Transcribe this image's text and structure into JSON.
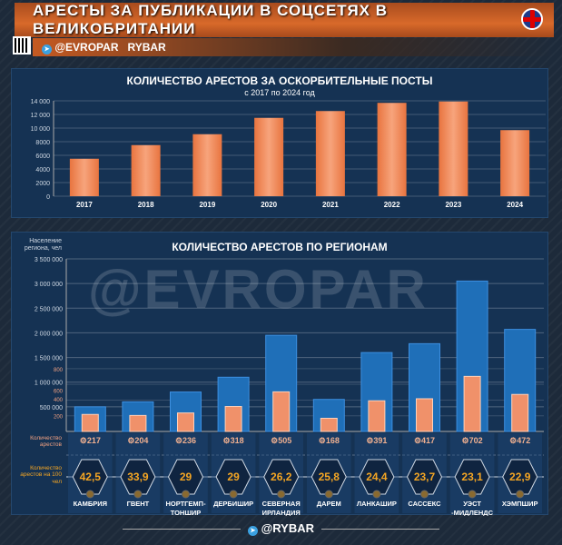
{
  "header": {
    "title": "АРЕСТЫ ЗА ПУБЛИКАЦИИ В СОЦСЕТЯХ В ВЕЛИКОБРИТАНИИ",
    "channel": "@EVROPAR",
    "brand": "RYBAR",
    "footer": "@RYBAR",
    "watermark": "@EVROPAR"
  },
  "colors": {
    "arrests_bar": "#f0916a",
    "population_bar": "#1f6fb8",
    "accent": "#f5a623"
  },
  "chart_data": [
    {
      "type": "bar",
      "title": "КОЛИЧЕСТВО АРЕСТОВ ЗА ОСКОРБИТЕЛЬНЫЕ ПОСТЫ",
      "subtitle": "с 2017 по 2024 год",
      "categories": [
        "2017",
        "2018",
        "2019",
        "2020",
        "2021",
        "2022",
        "2023",
        "2024"
      ],
      "values": [
        5500,
        7500,
        9100,
        11500,
        12500,
        13700,
        13900,
        9700
      ],
      "ylim": [
        0,
        14000
      ],
      "yticks": [
        "0",
        "2000",
        "4000",
        "6000",
        "8000",
        "10 000",
        "12 000",
        "14 000"
      ],
      "grid": true
    },
    {
      "type": "bar",
      "title": "КОЛИЧЕСТВО АРЕСТОВ ПО РЕГИОНАМ",
      "ylabel": "Население региона, чел",
      "yticks": [
        "3 500 000",
        "3 000 000",
        "2 500 000",
        "2 000 000",
        "1 500 000",
        "1 000 000",
        "500 000"
      ],
      "yticks_arrests": [
        "800",
        "600",
        "400",
        "200"
      ],
      "ylim": [
        0,
        3500000
      ],
      "ylim_arrests": [
        0,
        2200
      ],
      "row_label_arrests": "Количество арестов",
      "row_label_rate": "Количество арестов на 100 чел",
      "categories": [
        "КАМБРИЯ",
        "ГВЕНТ",
        "НОРТГЕМП-ТОНШИР",
        "ДЕРБИШИР",
        "СЕВЕРНАЯ ИРЛАНДИЯ",
        "ДАРЕМ",
        "ЛАНКАШИР",
        "САССЕКС",
        "УЭСТ -МИДЛЕНДС",
        "ХЭМПШИР"
      ],
      "series": [
        {
          "name": "Население региона, чел",
          "values": [
            500000,
            600000,
            800000,
            1100000,
            1950000,
            650000,
            1600000,
            1780000,
            3050000,
            2070000
          ]
        },
        {
          "name": "Количество арестов",
          "values": [
            217,
            204,
            236,
            318,
            505,
            168,
            391,
            417,
            702,
            472
          ]
        },
        {
          "name": "Количество арестов на 100 чел",
          "values": [
            "42,5",
            "33,9",
            "29",
            "29",
            "26,2",
            "25,8",
            "24,4",
            "23,7",
            "23,1",
            "22,9"
          ]
        }
      ]
    }
  ]
}
